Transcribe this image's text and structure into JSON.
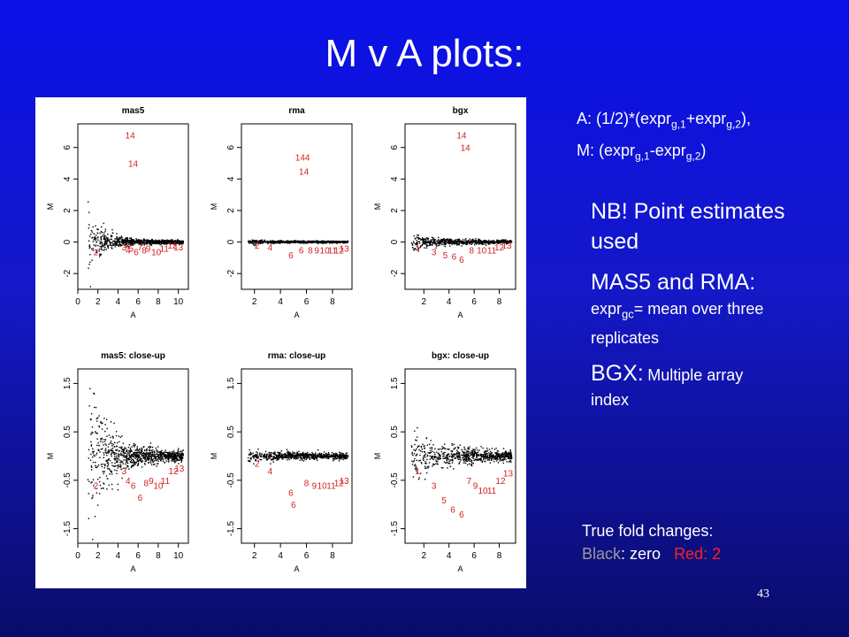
{
  "slide": {
    "title": "M v A plots:",
    "formula": {
      "a_prefix": "A: (1/2)*(expr",
      "a_sub1": "g,1",
      "a_mid": "+expr",
      "a_sub2": "g,2",
      "a_suffix": "),",
      "m_prefix": "M: (expr",
      "m_sub1": "g,1",
      "m_mid": "-expr",
      "m_sub2": "g,2",
      "m_suffix": ")"
    },
    "notes": {
      "nb": "NB! Point estimates used",
      "mas5_rma_head": "MAS5 and RMA:",
      "expr_prefix": "expr",
      "expr_sub": "gc",
      "expr_rest": "= mean over three replicates",
      "bgx_head": "BGX:",
      "bgx_rest": "Multiple array index"
    },
    "true_fold": {
      "label": "True fold changes:",
      "black_word": "Black",
      "black_rest": ": zero",
      "red_word": "Red: 2"
    },
    "page_number": "43"
  },
  "chart_data": [
    {
      "type": "scatter",
      "title": "mas5",
      "xlabel": "A",
      "ylabel": "M",
      "xticks": [
        "0",
        "2",
        "4",
        "6",
        "8",
        "10"
      ],
      "yticks": [
        "-2",
        "0",
        "2",
        "4",
        "6"
      ],
      "xlim": [
        0,
        11
      ],
      "ylim": [
        -3,
        7.5
      ],
      "black_points": {
        "a_range": [
          1,
          10.5
        ],
        "center_m": 0,
        "description": "dense cloud of ~1000 genes around M=0, wider spread at low A"
      },
      "red_labels": [
        {
          "text": "14",
          "a": 5.2,
          "m": 6.8
        },
        {
          "text": "14",
          "a": 5.5,
          "m": 5.0
        },
        {
          "text": "2",
          "a": 1.8,
          "m": -0.6
        },
        {
          "text": "3",
          "a": 4.6,
          "m": -0.3
        },
        {
          "text": "4",
          "a": 5.0,
          "m": -0.5
        },
        {
          "text": "5",
          "a": 5.3,
          "m": -0.4
        },
        {
          "text": "6",
          "a": 5.8,
          "m": -0.6
        },
        {
          "text": "7",
          "a": 6.2,
          "m": -0.3
        },
        {
          "text": "8",
          "a": 6.6,
          "m": -0.5
        },
        {
          "text": "9",
          "a": 7.0,
          "m": -0.4
        },
        {
          "text": "10",
          "a": 7.8,
          "m": -0.6
        },
        {
          "text": "11",
          "a": 8.6,
          "m": -0.4
        },
        {
          "text": "12",
          "a": 9.4,
          "m": -0.2
        },
        {
          "text": "13",
          "a": 10.0,
          "m": -0.3
        }
      ]
    },
    {
      "type": "scatter",
      "title": "rma",
      "xlabel": "A",
      "ylabel": "M",
      "xticks": [
        "2",
        "4",
        "6",
        "8"
      ],
      "yticks": [
        "-2",
        "0",
        "2",
        "4",
        "6"
      ],
      "xlim": [
        1,
        9.5
      ],
      "ylim": [
        -3,
        7.5
      ],
      "black_points": {
        "a_range": [
          1.5,
          9.2
        ],
        "center_m": 0,
        "description": "tight band of genes around M=0"
      },
      "red_labels": [
        {
          "text": "144",
          "a": 5.7,
          "m": 5.4
        },
        {
          "text": "14",
          "a": 5.8,
          "m": 4.5
        },
        {
          "text": "2",
          "a": 2.2,
          "m": -0.2
        },
        {
          "text": "4",
          "a": 3.2,
          "m": -0.3
        },
        {
          "text": "6",
          "a": 4.8,
          "m": -0.8
        },
        {
          "text": "6",
          "a": 5.6,
          "m": -0.5
        },
        {
          "text": "8",
          "a": 6.3,
          "m": -0.5
        },
        {
          "text": "9",
          "a": 6.8,
          "m": -0.5
        },
        {
          "text": "10",
          "a": 7.4,
          "m": -0.5
        },
        {
          "text": "11",
          "a": 8.0,
          "m": -0.5
        },
        {
          "text": "12",
          "a": 8.5,
          "m": -0.5
        },
        {
          "text": "13",
          "a": 8.9,
          "m": -0.4
        }
      ]
    },
    {
      "type": "scatter",
      "title": "bgx",
      "xlabel": "A",
      "ylabel": "M",
      "xticks": [
        "2",
        "4",
        "6",
        "8"
      ],
      "yticks": [
        "-2",
        "0",
        "2",
        "4",
        "6"
      ],
      "xlim": [
        0.5,
        9.3
      ],
      "ylim": [
        -3,
        7.5
      ],
      "black_points": {
        "a_range": [
          1,
          9
        ],
        "center_m": 0,
        "description": "band of genes around M=0"
      },
      "red_labels": [
        {
          "text": "14",
          "a": 5.0,
          "m": 6.8
        },
        {
          "text": "14",
          "a": 5.3,
          "m": 6.0
        },
        {
          "text": "1",
          "a": 1.5,
          "m": -0.3
        },
        {
          "text": "3",
          "a": 2.8,
          "m": -0.6
        },
        {
          "text": "5",
          "a": 3.7,
          "m": -0.8
        },
        {
          "text": "6",
          "a": 4.4,
          "m": -0.9
        },
        {
          "text": "6",
          "a": 5.0,
          "m": -1.1
        },
        {
          "text": "8",
          "a": 5.8,
          "m": -0.5
        },
        {
          "text": "10",
          "a": 6.6,
          "m": -0.5
        },
        {
          "text": "11",
          "a": 7.4,
          "m": -0.5
        },
        {
          "text": "12",
          "a": 8.0,
          "m": -0.3
        },
        {
          "text": "13",
          "a": 8.6,
          "m": -0.2
        }
      ]
    },
    {
      "type": "scatter",
      "title": "mas5: close-up",
      "xlabel": "A",
      "ylabel": "M",
      "xticks": [
        "0",
        "2",
        "4",
        "6",
        "8",
        "10"
      ],
      "yticks": [
        "-1.5",
        "-0.5",
        "0.5",
        "1.5"
      ],
      "xlim": [
        0,
        11
      ],
      "ylim": [
        -1.8,
        1.8
      ],
      "black_points": {
        "a_range": [
          1,
          10.5
        ],
        "center_m": 0,
        "description": "widely scattered cloud at low A narrowing at high A"
      },
      "red_labels": [
        {
          "text": "2",
          "a": 1.8,
          "m": -0.6
        },
        {
          "text": "3",
          "a": 4.6,
          "m": -0.3
        },
        {
          "text": "4",
          "a": 5.0,
          "m": -0.5
        },
        {
          "text": "6",
          "a": 5.5,
          "m": -0.6
        },
        {
          "text": "6",
          "a": 6.2,
          "m": -0.85
        },
        {
          "text": "8",
          "a": 6.8,
          "m": -0.55
        },
        {
          "text": "9",
          "a": 7.3,
          "m": -0.5
        },
        {
          "text": "10",
          "a": 8.0,
          "m": -0.6
        },
        {
          "text": "11",
          "a": 8.7,
          "m": -0.5
        },
        {
          "text": "12",
          "a": 9.5,
          "m": -0.3
        },
        {
          "text": "13",
          "a": 10.1,
          "m": -0.25
        }
      ]
    },
    {
      "type": "scatter",
      "title": "rma: close-up",
      "xlabel": "A",
      "ylabel": "M",
      "xticks": [
        "2",
        "4",
        "6",
        "8"
      ],
      "yticks": [
        "-1.5",
        "-0.5",
        "0.5",
        "1.5"
      ],
      "xlim": [
        1,
        9.5
      ],
      "ylim": [
        -1.8,
        1.8
      ],
      "black_points": {
        "a_range": [
          1.5,
          9.2
        ],
        "center_m": 0,
        "description": "tight band around M=0"
      },
      "red_labels": [
        {
          "text": "2",
          "a": 2.2,
          "m": -0.15
        },
        {
          "text": "4",
          "a": 3.2,
          "m": -0.3
        },
        {
          "text": "6",
          "a": 4.8,
          "m": -0.75
        },
        {
          "text": "6",
          "a": 5.0,
          "m": -1.0
        },
        {
          "text": "8",
          "a": 6.0,
          "m": -0.55
        },
        {
          "text": "9",
          "a": 6.6,
          "m": -0.6
        },
        {
          "text": "10",
          "a": 7.2,
          "m": -0.6
        },
        {
          "text": "11",
          "a": 7.9,
          "m": -0.6
        },
        {
          "text": "12",
          "a": 8.5,
          "m": -0.55
        },
        {
          "text": "13",
          "a": 8.9,
          "m": -0.5
        }
      ]
    },
    {
      "type": "scatter",
      "title": "bgx: close-up",
      "xlabel": "A",
      "ylabel": "M",
      "xticks": [
        "2",
        "4",
        "6",
        "8"
      ],
      "yticks": [
        "-1.5",
        "-0.5",
        "0.5",
        "1.5"
      ],
      "xlim": [
        0.5,
        9.3
      ],
      "ylim": [
        -1.8,
        1.8
      ],
      "black_points": {
        "a_range": [
          1,
          9
        ],
        "center_m": 0,
        "description": "band around M=0"
      },
      "red_labels": [
        {
          "text": "1",
          "a": 1.5,
          "m": -0.3
        },
        {
          "text": "3",
          "a": 2.8,
          "m": -0.6
        },
        {
          "text": "5",
          "a": 3.6,
          "m": -0.9
        },
        {
          "text": "6",
          "a": 4.3,
          "m": -1.1
        },
        {
          "text": "6",
          "a": 5.0,
          "m": -1.2
        },
        {
          "text": "7",
          "a": 5.6,
          "m": -0.5
        },
        {
          "text": "9",
          "a": 6.1,
          "m": -0.6
        },
        {
          "text": "10",
          "a": 6.7,
          "m": -0.7
        },
        {
          "text": "11",
          "a": 7.4,
          "m": -0.7
        },
        {
          "text": "12",
          "a": 8.1,
          "m": -0.5
        },
        {
          "text": "13",
          "a": 8.7,
          "m": -0.35
        }
      ]
    }
  ]
}
